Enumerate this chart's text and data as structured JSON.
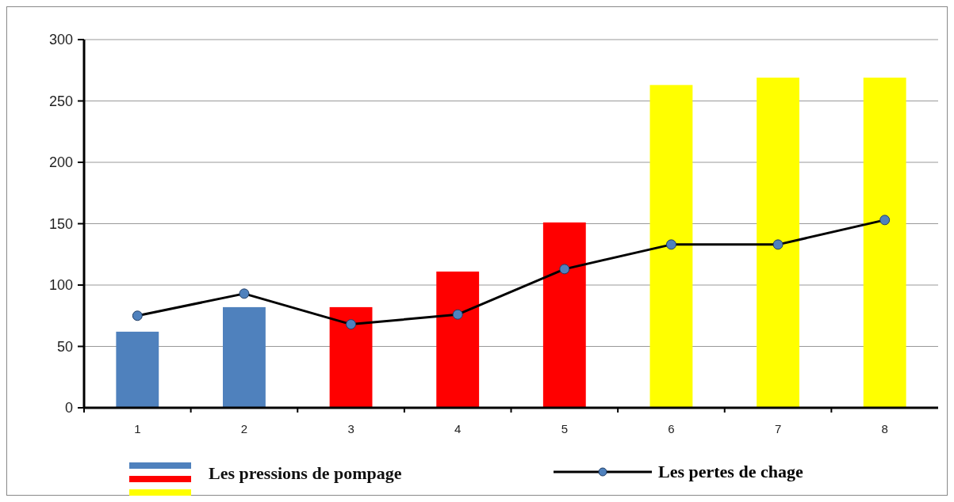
{
  "chart_data": {
    "type": "bar",
    "categories": [
      "1",
      "2",
      "3",
      "4",
      "5",
      "6",
      "7",
      "8"
    ],
    "series": [
      {
        "name": "Les pressions de pompage",
        "colors": [
          "#4f81bd",
          "#4f81bd",
          "#ff0000",
          "#ff0000",
          "#ff0000",
          "#ffff00",
          "#ffff00",
          "#ffff00"
        ],
        "values": [
          62,
          82,
          82,
          111,
          151,
          263,
          269,
          269
        ]
      },
      {
        "name": "Les pertes de chage",
        "type": "line",
        "color": "#000000",
        "marker": "circle",
        "values": [
          75,
          93,
          68,
          76,
          113,
          133,
          133,
          153
        ]
      }
    ],
    "ylim": [
      0,
      300
    ],
    "yticks": [
      0,
      50,
      100,
      150,
      200,
      250,
      300
    ],
    "grid": "y",
    "legend": "bottom"
  }
}
